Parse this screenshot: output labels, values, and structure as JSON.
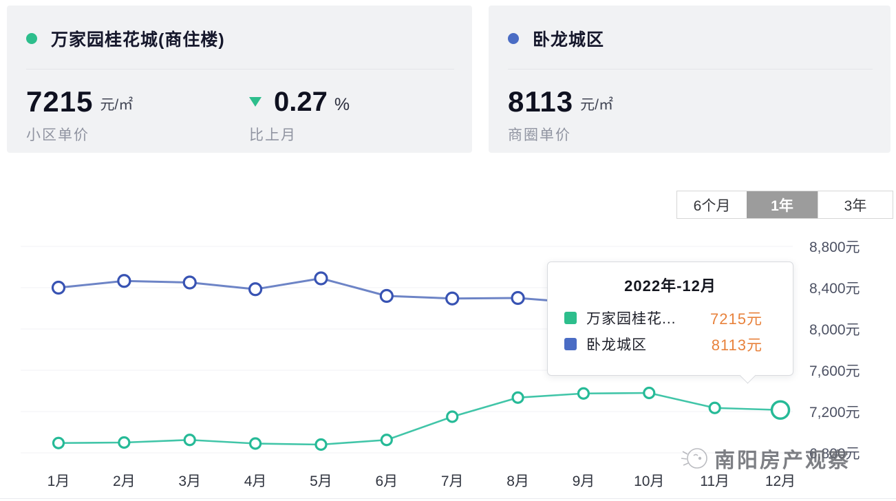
{
  "panel_left": {
    "dot_color": "#2dbe8c",
    "title": "万家园桂花城(商住楼)",
    "price": "7215",
    "price_unit": "元/㎡",
    "price_caption": "小区单价",
    "change_value": "0.27",
    "change_unit": "%",
    "change_caption": "比上月",
    "change_direction": "down",
    "change_color": "#2dbe8c"
  },
  "panel_right": {
    "dot_color": "#4a6cc4",
    "title": "卧龙城区",
    "price": "8113",
    "price_unit": "元/㎡",
    "price_caption": "商圈单价"
  },
  "range_tabs": {
    "items": [
      {
        "label": "6个月",
        "active": false
      },
      {
        "label": "1年",
        "active": true
      },
      {
        "label": "3年",
        "active": false
      }
    ]
  },
  "tooltip": {
    "title": "2022年-12月",
    "rows": [
      {
        "label": "万家园桂花...",
        "value": "7215元",
        "color": "#2dbe8c"
      },
      {
        "label": "卧龙城区",
        "value": "8113元",
        "color": "#4a6cc4"
      }
    ],
    "value_color": "#e8823c"
  },
  "watermark": {
    "text": "南阳房产观察"
  },
  "chart_data": {
    "type": "line",
    "title": "",
    "xlabel": "",
    "ylabel": "",
    "x": [
      "1月",
      "2月",
      "3月",
      "4月",
      "5月",
      "6月",
      "7月",
      "8月",
      "9月",
      "10月",
      "11月",
      "12月"
    ],
    "series": [
      {
        "name": "万家园桂花城(商住楼)",
        "color": "#41c5a8",
        "point_stroke": "#26ba97",
        "values": [
          6895,
          6900,
          6925,
          6890,
          6880,
          6925,
          7150,
          7335,
          7375,
          7380,
          7235,
          7215
        ],
        "highlight_last": true
      },
      {
        "name": "卧龙城区",
        "color": "#6d84c6",
        "point_stroke": "#3853b3",
        "values": [
          8400,
          8465,
          8450,
          8385,
          8490,
          8320,
          8295,
          8300,
          8250,
          8200,
          8150,
          8113
        ],
        "highlight_last": false
      }
    ],
    "yticks": [
      {
        "label": "8,800元",
        "value": 8800
      },
      {
        "label": "8,400元",
        "value": 8400
      },
      {
        "label": "8,000元",
        "value": 8000
      },
      {
        "label": "7,600元",
        "value": 7600
      },
      {
        "label": "7,200元",
        "value": 7200
      },
      {
        "label": "6,800元",
        "value": 6800
      }
    ],
    "ylim": [
      6600,
      9000
    ],
    "grid": true,
    "legend_position": "tooltip-only"
  }
}
